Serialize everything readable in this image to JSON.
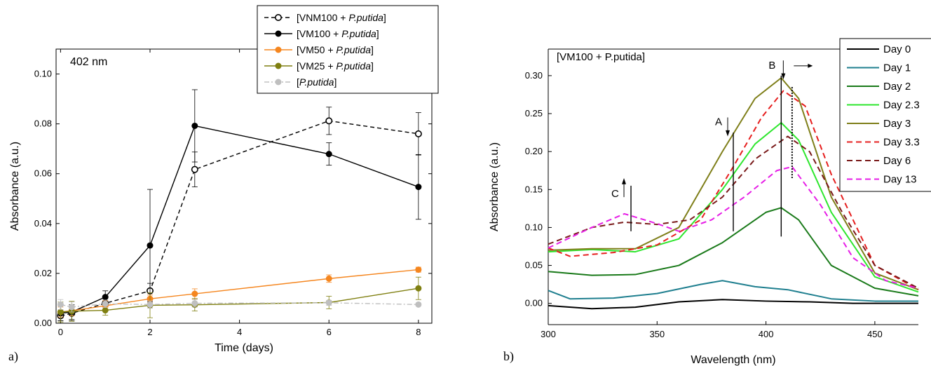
{
  "chart_data": [
    {
      "type": "line",
      "panel_label": "a)",
      "annotation": "402 nm",
      "xlabel": "Time (days)",
      "ylabel": "Absorbance (a.u.)",
      "xlim": [
        -0.1,
        8.3
      ],
      "ylim": [
        0.0,
        0.11
      ],
      "xticks": [
        "0",
        "2",
        "4",
        "6",
        "8"
      ],
      "yticks": [
        "0.00",
        "0.02",
        "0.04",
        "0.06",
        "0.08",
        "0.10"
      ],
      "legend_position": "top-right",
      "series": [
        {
          "name_prefix": "[VNM100 + ",
          "name_italic": "P.putida",
          "name_suffix": "]",
          "color": "#000000",
          "style": "dashed",
          "marker": "open-circle",
          "x": [
            0,
            0.25,
            1,
            2,
            3,
            6,
            8
          ],
          "y": [
            0.003,
            0.004,
            0.008,
            0.013,
            0.0617,
            0.0812,
            0.076
          ],
          "err": [
            0.002,
            0.003,
            0.003,
            0.003,
            0.007,
            0.0055,
            0.0085
          ]
        },
        {
          "name_prefix": "[VM100 + ",
          "name_italic": "P.putida",
          "name_suffix": "]",
          "color": "#000000",
          "style": "solid",
          "marker": "filled-circle",
          "x": [
            0,
            0.25,
            1,
            2,
            3,
            6,
            8
          ],
          "y": [
            0.004,
            0.0045,
            0.0105,
            0.0312,
            0.0792,
            0.0679,
            0.0547
          ],
          "err": [
            0.003,
            0.003,
            0.0025,
            0.0225,
            0.0145,
            0.0045,
            0.013
          ]
        },
        {
          "name_prefix": "[VM50 + ",
          "name_italic": "P.putida",
          "name_suffix": "]",
          "color": "#f5861f",
          "style": "solid",
          "marker": "filled-circle",
          "x": [
            0,
            0.25,
            1,
            2,
            3,
            6,
            8
          ],
          "y": [
            0.0045,
            0.005,
            0.007,
            0.0098,
            0.0118,
            0.0179,
            0.0215
          ],
          "err": [
            0.002,
            0.002,
            0.002,
            0.0015,
            0.002,
            0.0015,
            0.001
          ]
        },
        {
          "name_prefix": "[VM25 + ",
          "name_italic": "P.putida",
          "name_suffix": "]",
          "color": "#7f7f10",
          "style": "solid",
          "marker": "filled-circle",
          "x": [
            0,
            0.25,
            1,
            2,
            3,
            6,
            8
          ],
          "y": [
            0.0045,
            0.0048,
            0.0052,
            0.0072,
            0.0074,
            0.0083,
            0.014
          ],
          "err": [
            0.004,
            0.004,
            0.002,
            0.005,
            0.0025,
            0.0025,
            0.0045
          ]
        },
        {
          "name_prefix": "[",
          "name_italic": "P.putida",
          "name_suffix": "]",
          "color": "#bfbfbf",
          "style": "dashdot",
          "marker": "filled-circle",
          "x": [
            0,
            0.25,
            1,
            2,
            3,
            6,
            8
          ],
          "y": [
            0.0075,
            0.0065,
            0.0078,
            0.0075,
            0.008,
            0.0082,
            0.0075
          ],
          "err": [
            0.002,
            0.002,
            0.0015,
            0.0015,
            0.0015,
            0.001,
            0.0005
          ]
        }
      ]
    },
    {
      "type": "line",
      "panel_label": "b)",
      "annotation": "[VM100 + P.putida]",
      "xlabel": "Wavelength (nm)",
      "ylabel": "Absorbance (a.u.)",
      "xlim": [
        300,
        470
      ],
      "ylim": [
        -0.028,
        0.335
      ],
      "xticks": [
        "300",
        "350",
        "400",
        "450"
      ],
      "yticks": [
        "0.00",
        "0.05",
        "0.10",
        "0.15",
        "0.20",
        "0.25",
        "0.30"
      ],
      "legend_position": "top-right",
      "marker_labels": {
        "A": "A",
        "B": "B",
        "C": "C"
      },
      "series": [
        {
          "name": "Day 0",
          "color": "#000000",
          "style": "solid",
          "x": [
            300,
            320,
            340,
            360,
            380,
            400,
            420,
            440,
            470
          ],
          "y": [
            -0.003,
            -0.007,
            -0.005,
            0.002,
            0.005,
            0.003,
            0.002,
            0.0,
            0.0
          ]
        },
        {
          "name": "Day 1",
          "color": "#1f7f8f",
          "style": "solid",
          "x": [
            300,
            310,
            330,
            350,
            370,
            380,
            395,
            410,
            430,
            450,
            470
          ],
          "y": [
            0.017,
            0.006,
            0.007,
            0.013,
            0.025,
            0.03,
            0.022,
            0.018,
            0.006,
            0.003,
            0.003
          ]
        },
        {
          "name": "Day 2",
          "color": "#1a7a1a",
          "style": "solid",
          "x": [
            300,
            320,
            340,
            360,
            380,
            390,
            400,
            407,
            415,
            430,
            450,
            470
          ],
          "y": [
            0.042,
            0.037,
            0.038,
            0.05,
            0.08,
            0.1,
            0.12,
            0.126,
            0.11,
            0.05,
            0.02,
            0.01
          ]
        },
        {
          "name": "Day 2.3",
          "color": "#2ee62e",
          "style": "solid",
          "x": [
            300,
            320,
            340,
            360,
            380,
            395,
            407,
            415,
            430,
            450,
            470
          ],
          "y": [
            0.068,
            0.071,
            0.068,
            0.085,
            0.15,
            0.21,
            0.238,
            0.215,
            0.12,
            0.035,
            0.015
          ]
        },
        {
          "name": "Day 3",
          "color": "#7f7f1a",
          "style": "solid",
          "x": [
            300,
            320,
            340,
            360,
            380,
            395,
            407,
            415,
            430,
            450,
            470
          ],
          "y": [
            0.07,
            0.072,
            0.072,
            0.1,
            0.2,
            0.27,
            0.297,
            0.27,
            0.14,
            0.04,
            0.018
          ]
        },
        {
          "name": "Day 3.3",
          "color": "#e61e1e",
          "style": "dashed",
          "x": [
            300,
            310,
            330,
            350,
            370,
            385,
            398,
            408,
            418,
            430,
            450,
            470
          ],
          "y": [
            0.073,
            0.062,
            0.067,
            0.077,
            0.11,
            0.18,
            0.245,
            0.28,
            0.26,
            0.17,
            0.05,
            0.018
          ]
        },
        {
          "name": "Day 6",
          "color": "#7a1a1a",
          "style": "dashed",
          "x": [
            300,
            320,
            335,
            350,
            365,
            380,
            395,
            410,
            420,
            435,
            450,
            470
          ],
          "y": [
            0.078,
            0.1,
            0.107,
            0.104,
            0.11,
            0.14,
            0.19,
            0.22,
            0.2,
            0.12,
            0.05,
            0.02
          ]
        },
        {
          "name": "Day 13",
          "color": "#e61ee6",
          "style": "dashed",
          "x": [
            300,
            320,
            335,
            350,
            360,
            375,
            390,
            405,
            412,
            425,
            440,
            455,
            470
          ],
          "y": [
            0.073,
            0.1,
            0.118,
            0.105,
            0.095,
            0.11,
            0.14,
            0.175,
            0.18,
            0.13,
            0.06,
            0.03,
            0.02
          ]
        }
      ]
    }
  ]
}
